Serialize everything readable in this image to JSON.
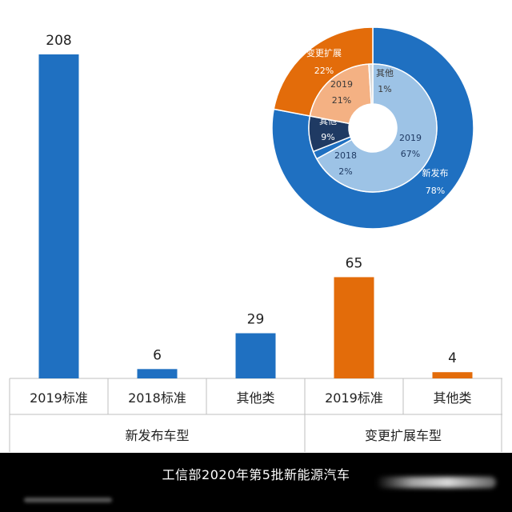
{
  "chart_data": [
    {
      "type": "bar",
      "groups": [
        {
          "name": "新发布车型",
          "categories": [
            "2019标准",
            "2018标准",
            "其他类"
          ],
          "values": [
            208,
            6,
            29
          ],
          "color": "#1f70c1"
        },
        {
          "name": "变更扩展车型",
          "categories": [
            "2019标准",
            "其他类"
          ],
          "values": [
            65,
            4
          ],
          "color": "#e36c0a"
        }
      ],
      "ylim": [
        0,
        208
      ],
      "grid": false
    },
    {
      "type": "pie",
      "style": "double-donut",
      "outer": [
        {
          "label": "新发布",
          "pct": "78%",
          "value": 78,
          "color": "#1f70c1"
        },
        {
          "label": "变更扩展",
          "pct": "22%",
          "value": 22,
          "color": "#e36c0a"
        }
      ],
      "inner": [
        {
          "label": "2019",
          "pct": "67%",
          "value": 67,
          "color": "#9dc3e6"
        },
        {
          "label": "2018",
          "pct": "2%",
          "value": 2,
          "color": "#1f70c1"
        },
        {
          "label": "其他",
          "pct": "9%",
          "value": 9,
          "color": "#1f3a63"
        },
        {
          "label": "2019",
          "pct": "21%",
          "value": 21,
          "color": "#f4b183"
        },
        {
          "label": "其他",
          "pct": "1%",
          "value": 1,
          "color": "#d9d9d9"
        }
      ]
    }
  ],
  "caption": "工信部2020年第5批新能源汽车"
}
